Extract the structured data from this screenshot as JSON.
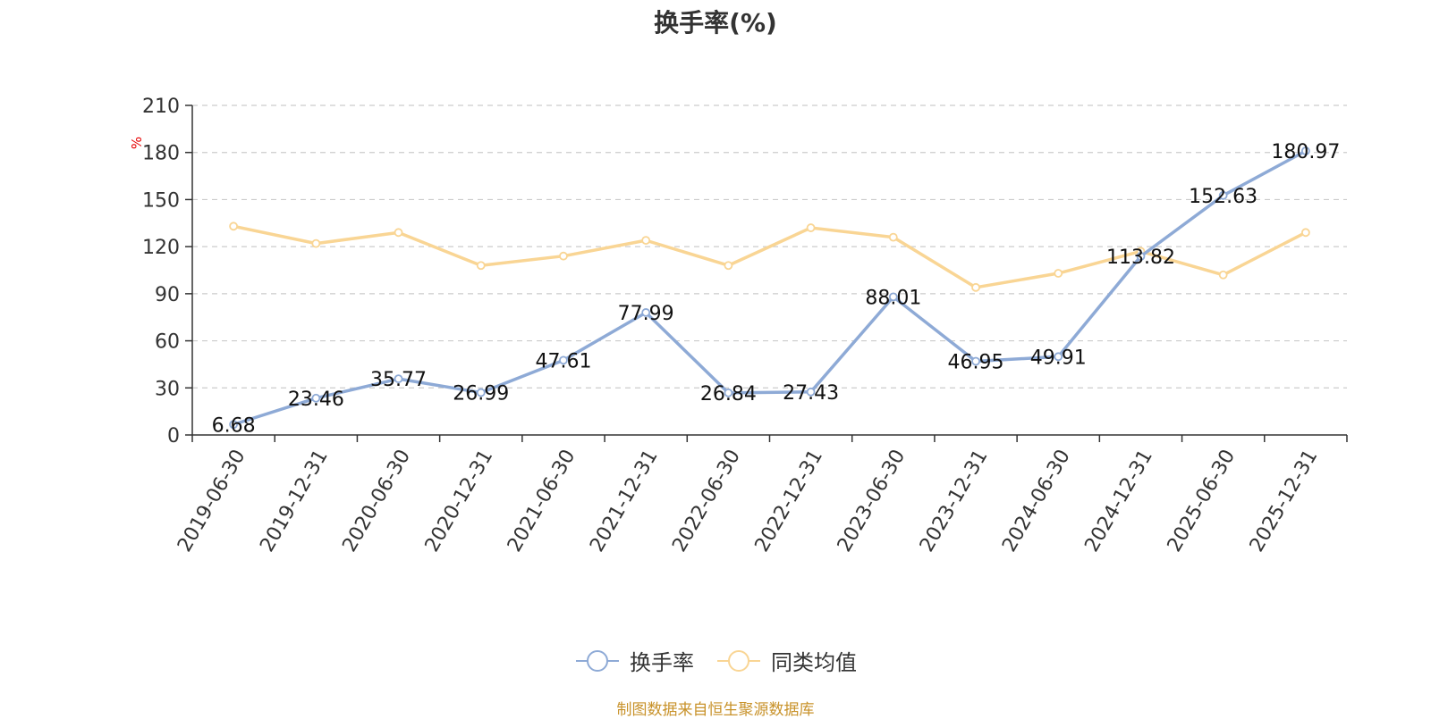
{
  "title": "换手率(%)",
  "source_note": "制图数据来自恒生聚源数据库",
  "chart_data": {
    "type": "line",
    "title": "换手率(%)",
    "ylabel": "%",
    "xlabel": "",
    "ylim": [
      0,
      210
    ],
    "yticks": [
      0,
      30,
      60,
      90,
      120,
      150,
      180,
      210
    ],
    "grid": true,
    "legend_position": "bottom",
    "categories": [
      "2019-06-30",
      "2019-12-31",
      "2020-06-30",
      "2020-12-31",
      "2021-06-30",
      "2021-12-31",
      "2022-06-30",
      "2022-12-31",
      "2023-06-30",
      "2023-12-31",
      "2024-06-30",
      "2024-12-31",
      "2025-06-30",
      "2025-12-31"
    ],
    "series": [
      {
        "name": "换手率",
        "color": "#8eaad6",
        "values": [
          6.68,
          23.46,
          35.77,
          26.99,
          47.61,
          77.99,
          26.84,
          27.43,
          88.01,
          46.95,
          49.91,
          113.82,
          152.63,
          180.97
        ],
        "labels": [
          "6.68",
          "23.46",
          "35.77",
          "26.99",
          "47.61",
          "77.99",
          "26.84",
          "27.43",
          "88.01",
          "46.95",
          "49.91",
          "113.82",
          "152.63",
          "180.97"
        ]
      },
      {
        "name": "同类均值",
        "color": "#f9d594",
        "values": [
          133,
          122,
          129,
          108,
          114,
          124,
          108,
          132,
          126,
          94,
          103,
          117,
          102,
          129
        ]
      }
    ]
  }
}
